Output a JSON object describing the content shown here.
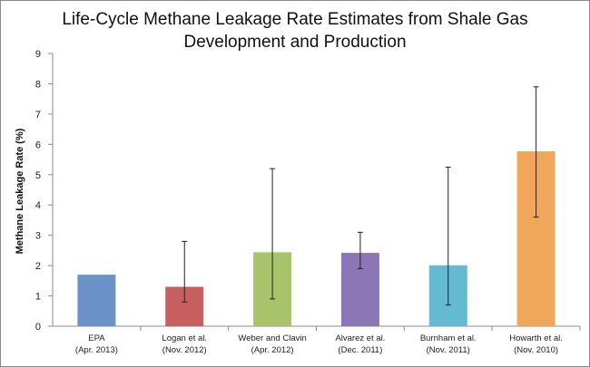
{
  "chart_data": {
    "type": "bar",
    "title_lines": [
      "Life-Cycle Methane Leakage Rate Estimates from Shale Gas",
      "Development and Production"
    ],
    "ylabel": "Methane Leakage Rate (%)",
    "xlabel": "",
    "ylim": [
      0,
      9
    ],
    "yticks": [
      0,
      1,
      2,
      3,
      4,
      5,
      6,
      7,
      8,
      9
    ],
    "grid": false,
    "categories": [
      {
        "line1": "EPA",
        "line2": "(Apr. 2013)"
      },
      {
        "line1": "Logan et al.",
        "line2": "(Nov. 2012)"
      },
      {
        "line1": "Weber and Clavin",
        "line2": "(Apr. 2012)"
      },
      {
        "line1": "Alvarez et al.",
        "line2": "(Dec. 2011)"
      },
      {
        "line1": "Burnham et al.",
        "line2": "(Nov. 2011)"
      },
      {
        "line1": "Howarth et al.",
        "line2": "(Nov. 2010)"
      }
    ],
    "values": [
      1.7,
      1.3,
      2.44,
      2.42,
      2.01,
      5.77
    ],
    "error_low": [
      null,
      0.8,
      0.9,
      1.9,
      0.7,
      3.6
    ],
    "error_high": [
      null,
      2.8,
      5.2,
      3.1,
      5.25,
      7.9
    ],
    "colors": [
      "#6b93c9",
      "#c86061",
      "#a8c46a",
      "#8c76b5",
      "#64bad0",
      "#f0a75c"
    ]
  }
}
